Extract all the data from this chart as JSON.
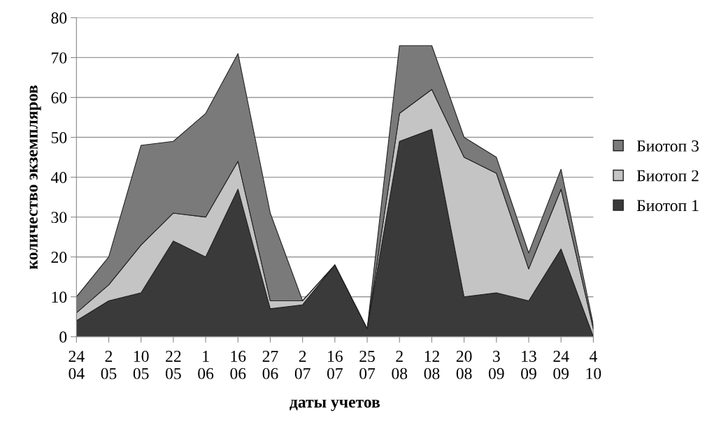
{
  "chart_data": {
    "type": "area",
    "stacked": true,
    "xlabel": "даты учетов",
    "ylabel": "количество экземпляров",
    "categories": [
      "24\n04",
      "2\n05",
      "10\n05",
      "22\n05",
      "1\n06",
      "16\n06",
      "27\n06",
      "2\n07",
      "16\n07",
      "25\n07",
      "2\n08",
      "12\n08",
      "20\n08",
      "3\n09",
      "13\n09",
      "24\n09",
      "4\n10"
    ],
    "series": [
      {
        "name": "Биотоп 1",
        "color": "#3a3a3a",
        "values": [
          4,
          9,
          11,
          24,
          20,
          37,
          7,
          8,
          18,
          2,
          49,
          52,
          10,
          11,
          9,
          22,
          0
        ]
      },
      {
        "name": "Биотоп 2",
        "color": "#c4c4c4",
        "values": [
          2,
          4,
          12,
          7,
          10,
          7,
          2,
          1,
          0,
          0,
          7,
          10,
          35,
          30,
          8,
          15,
          2
        ]
      },
      {
        "name": "Биотоп 3",
        "color": "#7a7a7a",
        "values": [
          4,
          7,
          25,
          18,
          26,
          27,
          22,
          0,
          0,
          0,
          17,
          11,
          5,
          4,
          4,
          5,
          1
        ]
      }
    ],
    "ylim": [
      0,
      80
    ],
    "yticks": [
      0,
      10,
      20,
      30,
      40,
      50,
      60,
      70,
      80
    ],
    "grid": "y",
    "legend": "right"
  }
}
